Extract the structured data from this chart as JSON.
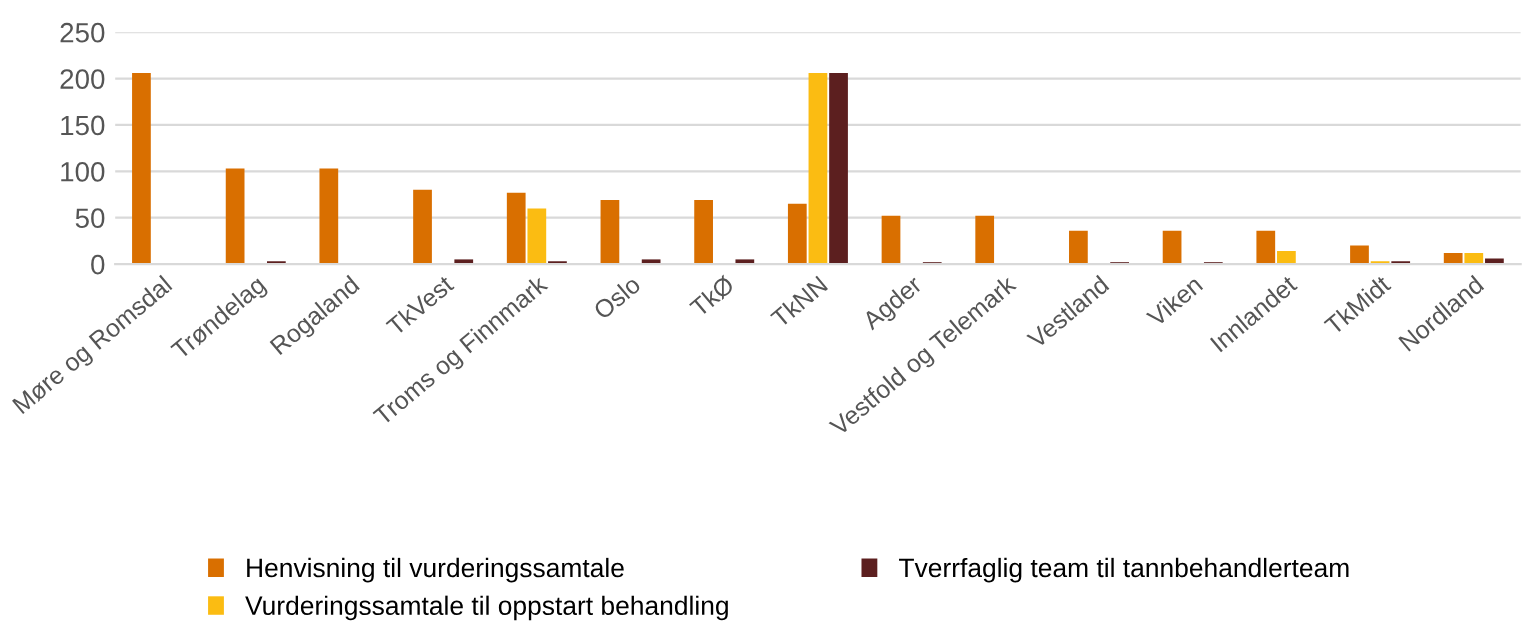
{
  "chart_data": {
    "type": "bar",
    "categories": [
      "Møre og Romsdal",
      "Trøndelag",
      "Rogaland",
      "TkVest",
      "Troms og Finnmark",
      "Oslo",
      "TkØ",
      "TkNN",
      "Agder",
      "Vestfold og Telemark",
      "Vestland",
      "Viken",
      "Innlandet",
      "TkMidt",
      "Nordland"
    ],
    "series": [
      {
        "name": "Henvisning til vurderingssamtale",
        "color": "#d96f00",
        "values": [
          206,
          103,
          103,
          80,
          77,
          69,
          69,
          65,
          52,
          52,
          36,
          36,
          36,
          20,
          12
        ]
      },
      {
        "name": "Vurderingssamtale til oppstart behandling",
        "color": "#fbbc12",
        "values": [
          null,
          null,
          null,
          null,
          60,
          null,
          null,
          206,
          null,
          null,
          null,
          null,
          14,
          3,
          12
        ]
      },
      {
        "name": "Tverrfaglig team til tannbehandlerteam",
        "color": "#5c1f1f",
        "values": [
          null,
          3,
          null,
          5,
          3,
          5,
          5,
          206,
          2,
          null,
          2,
          2,
          null,
          3,
          6
        ]
      }
    ],
    "ylim": [
      0,
      250
    ],
    "yticks": [
      0,
      50,
      100,
      150,
      200,
      250
    ],
    "grid": "y",
    "legend": "bottom"
  }
}
